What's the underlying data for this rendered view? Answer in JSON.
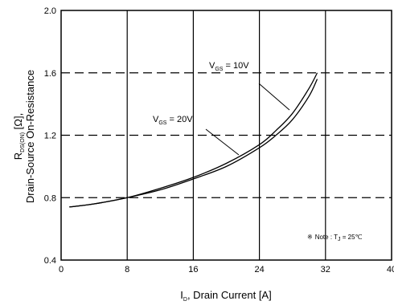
{
  "chart_data": {
    "type": "line",
    "xlabel": {
      "main": "I",
      "sub": "D",
      "rest": ", Drain Current [A]"
    },
    "ylabel": {
      "line1_main": "R",
      "line1_sub": "DS(ON)",
      "line1_rest": " [Ω],",
      "line2": "Drain-Source On-Resistance"
    },
    "xlim": [
      0,
      40
    ],
    "ylim": [
      0.4,
      2.0
    ],
    "x_ticks": [
      "0",
      "8",
      "16",
      "24",
      "32",
      "40"
    ],
    "y_ticks": [
      "0.4",
      "0.8",
      "1.2",
      "1.6",
      "2.0"
    ],
    "grid": {
      "vertical": "solid",
      "horizontal": "dashed"
    },
    "series": [
      {
        "label_main": "V",
        "label_sub": "GS",
        "label_rest": " = 10V",
        "x": [
          1,
          4,
          8,
          12,
          16,
          20,
          24,
          26,
          28,
          30,
          31
        ],
        "y": [
          0.74,
          0.76,
          0.8,
          0.86,
          0.93,
          1.02,
          1.14,
          1.23,
          1.34,
          1.5,
          1.6
        ]
      },
      {
        "label_main": "V",
        "label_sub": "GS",
        "label_rest": " = 20V",
        "x": [
          1,
          4,
          8,
          12,
          16,
          20,
          24,
          26,
          28,
          30,
          31
        ],
        "y": [
          0.74,
          0.76,
          0.8,
          0.85,
          0.92,
          1.0,
          1.12,
          1.2,
          1.3,
          1.45,
          1.56
        ]
      }
    ],
    "annotation": {
      "symbol": "※",
      "text_main": "Note : T",
      "text_sub": "J",
      "text_rest": " = 25℃"
    }
  }
}
